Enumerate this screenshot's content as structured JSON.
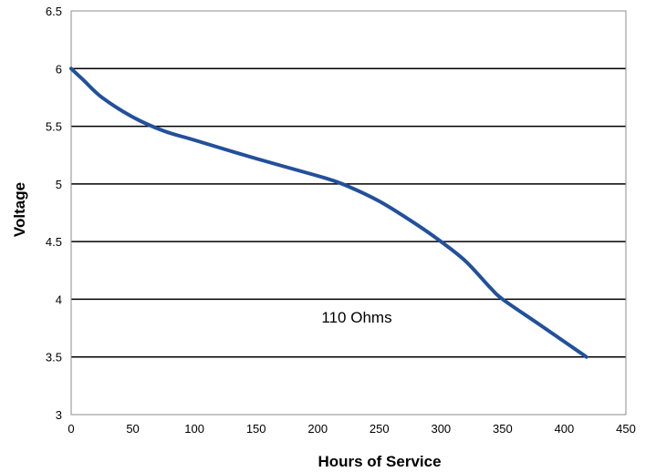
{
  "chart_data": {
    "type": "line",
    "title": "",
    "xlabel": "Hours of Service",
    "ylabel": "Voltage",
    "xlim": [
      0,
      450
    ],
    "ylim": [
      3,
      6.5
    ],
    "xticks": [
      "0",
      "50",
      "100",
      "150",
      "200",
      "250",
      "300",
      "350",
      "400",
      "450"
    ],
    "yticks": [
      "3",
      "3.5",
      "4",
      "4.5",
      "5",
      "5.5",
      "6",
      "6.5"
    ],
    "grid": "horizontal",
    "line_color": "#22509c",
    "annotation": "110 Ohms",
    "series": [
      {
        "name": "",
        "x": [
          0,
          10,
          25,
          50,
          75,
          100,
          150,
          200,
          220,
          250,
          280,
          300,
          320,
          340,
          350,
          380,
          418
        ],
        "y": [
          6.0,
          5.9,
          5.75,
          5.58,
          5.46,
          5.38,
          5.22,
          5.07,
          5.0,
          4.85,
          4.65,
          4.5,
          4.33,
          4.1,
          4.0,
          3.78,
          3.5
        ]
      }
    ]
  }
}
